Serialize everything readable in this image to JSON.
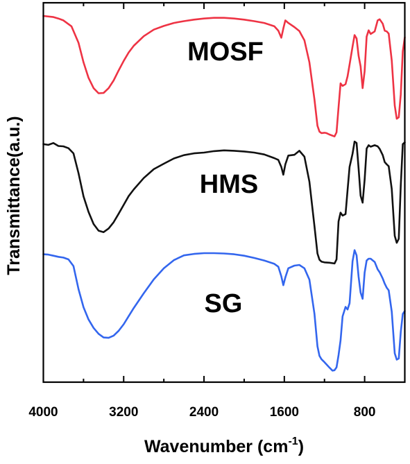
{
  "chart_data": {
    "type": "line",
    "title": "",
    "xlabel": "Wavenumber (cm",
    "xlabel_superscript": "-1",
    "xlabel_close": ")",
    "ylabel": "Transmittance(a.u.)",
    "xlim": [
      4000,
      400
    ],
    "x_reversed": true,
    "ylim": [
      0,
      100
    ],
    "yticks_shown": false,
    "grid": false,
    "legend": "none",
    "xticks": [
      4000,
      3200,
      2400,
      1600,
      800
    ],
    "xtick_labels": [
      "4000",
      "3200",
      "2400",
      "1600",
      "800"
    ],
    "series": [
      {
        "name": "MOSF",
        "color": "#ee3344",
        "x": [
          4000,
          3900,
          3850,
          3800,
          3720,
          3650,
          3600,
          3550,
          3500,
          3450,
          3400,
          3350,
          3300,
          3250,
          3200,
          3150,
          3100,
          3000,
          2900,
          2800,
          2700,
          2600,
          2500,
          2400,
          2300,
          2200,
          2100,
          2000,
          1900,
          1800,
          1700,
          1660,
          1630,
          1610,
          1590,
          1560,
          1500,
          1450,
          1400,
          1350,
          1300,
          1270,
          1250,
          1230,
          1200,
          1180,
          1150,
          1120,
          1100,
          1080,
          1060,
          1040,
          1020,
          990,
          970,
          950,
          920,
          900,
          880,
          860,
          840,
          820,
          800,
          780,
          760,
          740,
          700,
          670,
          650,
          620,
          600,
          580,
          560,
          530,
          500,
          480,
          460,
          440,
          420,
          400
        ],
        "y": [
          98.3,
          98.0,
          97.6,
          97.1,
          95.5,
          91.0,
          85.7,
          81.5,
          78.7,
          77.3,
          77.4,
          78.7,
          80.8,
          83.5,
          86.1,
          88.4,
          90.2,
          92.8,
          94.6,
          95.6,
          96.4,
          96.9,
          97.3,
          97.6,
          97.8,
          97.8,
          97.6,
          97.3,
          96.9,
          96.4,
          95.5,
          94.3,
          92.4,
          94.9,
          97.1,
          96.4,
          95.3,
          94.2,
          91.7,
          85.7,
          75.6,
          68.5,
          66.9,
          66.5,
          66.6,
          66.5,
          66.1,
          65.8,
          65.6,
          66.7,
          73.5,
          80.0,
          79.3,
          79.8,
          81.9,
          85.1,
          90.0,
          93.1,
          92.2,
          87.5,
          84.6,
          78.7,
          83.3,
          92.7,
          94.4,
          93.4,
          94.1,
          97.1,
          97.4,
          96.2,
          94.3,
          94.1,
          93.5,
          86.2,
          74.0,
          70.4,
          70.8,
          77.0,
          88.7,
          92.5
        ]
      },
      {
        "name": "HMS",
        "color": "#111111",
        "x": [
          4000,
          3950,
          3900,
          3850,
          3800,
          3750,
          3700,
          3650,
          3600,
          3550,
          3500,
          3450,
          3400,
          3350,
          3300,
          3250,
          3200,
          3150,
          3100,
          3000,
          2900,
          2800,
          2700,
          2600,
          2500,
          2400,
          2300,
          2200,
          2100,
          2000,
          1900,
          1800,
          1700,
          1660,
          1630,
          1610,
          1590,
          1560,
          1500,
          1450,
          1400,
          1350,
          1300,
          1270,
          1250,
          1230,
          1200,
          1150,
          1100,
          1080,
          1060,
          1040,
          1020,
          990,
          970,
          950,
          920,
          900,
          880,
          860,
          840,
          820,
          800,
          780,
          760,
          740,
          700,
          670,
          650,
          620,
          600,
          580,
          560,
          530,
          500,
          480,
          460,
          440,
          420,
          400
        ],
        "y": [
          63.5,
          63.3,
          63.8,
          63.0,
          62.9,
          62.4,
          61.0,
          55.6,
          49.3,
          45.1,
          41.8,
          40.0,
          39.6,
          40.6,
          42.3,
          44.6,
          47.0,
          49.4,
          51.2,
          54.3,
          56.7,
          58.2,
          59.6,
          60.5,
          61.0,
          61.2,
          61.6,
          61.8,
          61.7,
          61.5,
          61.2,
          60.7,
          59.7,
          59.2,
          57.3,
          55.2,
          58.0,
          60.4,
          60.6,
          61.7,
          60.1,
          53.3,
          41.2,
          33.8,
          32.1,
          31.6,
          31.4,
          31.3,
          31.1,
          32.2,
          42.5,
          44.9,
          44.1,
          44.5,
          51.0,
          57.3,
          60.9,
          64.2,
          63.8,
          56.9,
          49.5,
          47.6,
          53.8,
          62.3,
          63.2,
          62.8,
          63.2,
          62.9,
          62.2,
          60.5,
          58.6,
          58.0,
          57.5,
          51.3,
          38.6,
          36.7,
          37.8,
          52.3,
          63.5,
          64.0
        ]
      },
      {
        "name": "SG",
        "color": "#3366ee",
        "x": [
          4000,
          3950,
          3900,
          3850,
          3800,
          3750,
          3700,
          3650,
          3600,
          3550,
          3500,
          3450,
          3400,
          3350,
          3300,
          3250,
          3200,
          3150,
          3100,
          3000,
          2900,
          2800,
          2700,
          2600,
          2500,
          2400,
          2300,
          2200,
          2100,
          2000,
          1900,
          1800,
          1700,
          1660,
          1630,
          1610,
          1590,
          1560,
          1500,
          1450,
          1400,
          1350,
          1300,
          1270,
          1250,
          1230,
          1200,
          1150,
          1120,
          1100,
          1080,
          1060,
          1040,
          1020,
          990,
          970,
          950,
          920,
          900,
          880,
          860,
          840,
          820,
          800,
          780,
          760,
          740,
          700,
          670,
          650,
          620,
          600,
          580,
          560,
          530,
          500,
          480,
          460,
          440,
          420,
          400
        ],
        "y": [
          33.6,
          33.5,
          33.2,
          32.9,
          32.7,
          32.2,
          30.4,
          24.1,
          19.2,
          15.9,
          13.6,
          12.0,
          11.0,
          10.9,
          11.5,
          12.8,
          14.6,
          16.8,
          19.0,
          23.0,
          26.8,
          29.8,
          32.0,
          33.3,
          33.7,
          33.9,
          33.9,
          33.8,
          33.6,
          33.2,
          32.6,
          31.9,
          31.0,
          30.2,
          27.6,
          25.2,
          27.3,
          29.8,
          30.5,
          30.7,
          29.8,
          26.7,
          17.4,
          8.6,
          6.0,
          5.1,
          4.3,
          2.8,
          2.0,
          2.1,
          2.9,
          6.2,
          10.2,
          16.7,
          19.3,
          18.6,
          20.3,
          31.7,
          34.7,
          33.3,
          27.5,
          23.2,
          21.5,
          28.6,
          31.9,
          32.4,
          32.4,
          31.5,
          29.5,
          28.7,
          27.0,
          25.6,
          24.5,
          23.8,
          18.0,
          6.7,
          5.0,
          5.3,
          12.5,
          17.4,
          18.2
        ]
      }
    ]
  }
}
